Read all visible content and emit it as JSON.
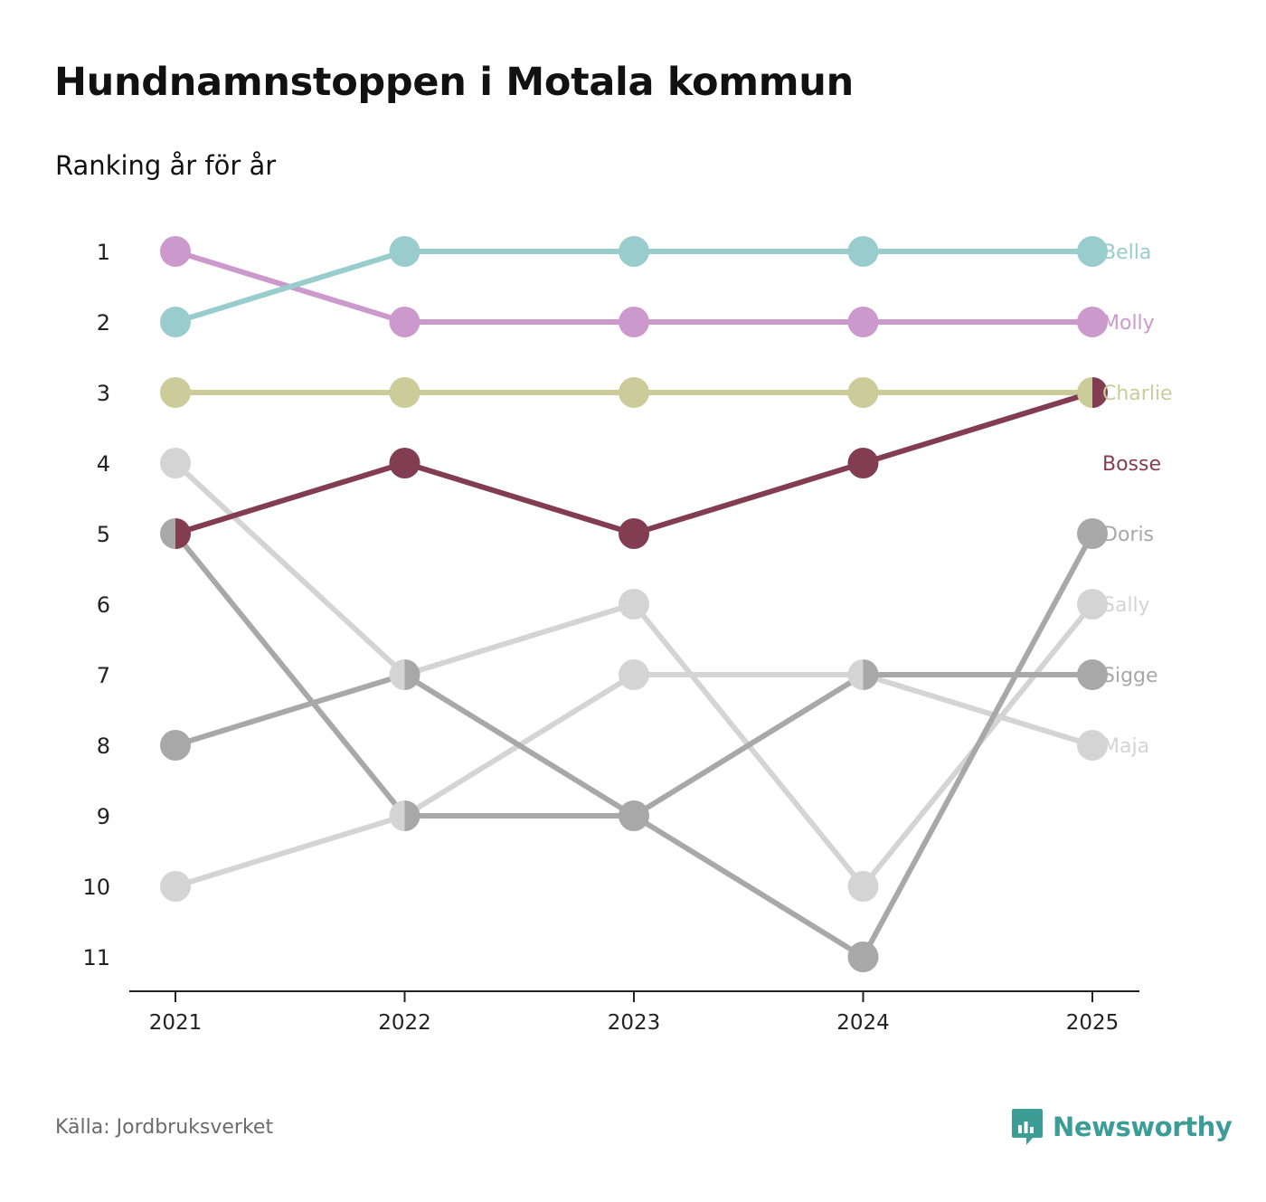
{
  "header": {
    "title": "Hundnamnstoppen i Motala kommun",
    "subtitle": "Ranking år för år"
  },
  "footer": {
    "source": "Källa: Jordbruksverket",
    "brand": "Newsworthy",
    "brand_icon": "bar-chart-speech-bubble-icon",
    "brand_color": "#3c9d96"
  },
  "chart_data": {
    "type": "line",
    "title": "Hundnamnstoppen i Motala kommun",
    "subtitle": "Ranking år för år",
    "xlabel": "",
    "ylabel": "",
    "x": [
      "2021",
      "2022",
      "2023",
      "2024",
      "2025"
    ],
    "y_ticks": [
      "1",
      "2",
      "3",
      "4",
      "5",
      "6",
      "7",
      "8",
      "9",
      "10",
      "11"
    ],
    "ylim": [
      1,
      11
    ],
    "y_inverted": true,
    "grid": false,
    "legend": "end-labels-right",
    "series": [
      {
        "name": "Maja",
        "values": [
          10,
          9,
          7,
          7,
          8
        ],
        "color": "#d4d4d4"
      },
      {
        "name": "Sally",
        "values": [
          4,
          7,
          6,
          10,
          6
        ],
        "color": "#d4d4d4"
      },
      {
        "name": "Sigge",
        "values": [
          8,
          7,
          9,
          7,
          7
        ],
        "color": "#a8a8a8"
      },
      {
        "name": "Doris",
        "values": [
          5,
          9,
          9,
          11,
          5
        ],
        "color": "#a8a8a8"
      },
      {
        "name": "Charlie",
        "values": [
          3,
          3,
          3,
          3,
          3
        ],
        "color": "#cccc9a"
      },
      {
        "name": "Molly",
        "values": [
          1,
          2,
          2,
          2,
          2
        ],
        "color": "#cc99cc"
      },
      {
        "name": "Bella",
        "values": [
          2,
          1,
          1,
          1,
          1
        ],
        "color": "#99cccc"
      },
      {
        "name": "Bosse",
        "values": [
          5,
          4,
          5,
          4,
          3
        ],
        "color": "#833d52"
      }
    ]
  }
}
